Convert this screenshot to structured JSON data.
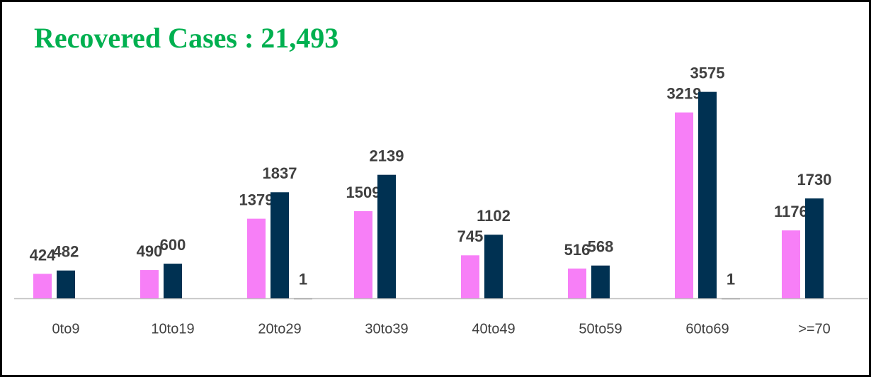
{
  "chart_data": {
    "type": "bar",
    "title": "Recovered Cases : 21,493",
    "categories": [
      "0to9",
      "10to19",
      "20to29",
      "30to39",
      "40to49",
      "50to59",
      "60to69",
      ">=70"
    ],
    "series": [
      {
        "color": "#f77ff7",
        "values": [
          424,
          490,
          1379,
          1509,
          745,
          516,
          3219,
          1176
        ]
      },
      {
        "color": "#003152",
        "values": [
          482,
          600,
          1837,
          2139,
          1102,
          568,
          3575,
          1730
        ]
      },
      {
        "color": "#a6a6a6",
        "values": [
          null,
          null,
          1,
          null,
          null,
          null,
          1,
          null
        ]
      }
    ],
    "ylim": [
      0,
      4000
    ]
  }
}
